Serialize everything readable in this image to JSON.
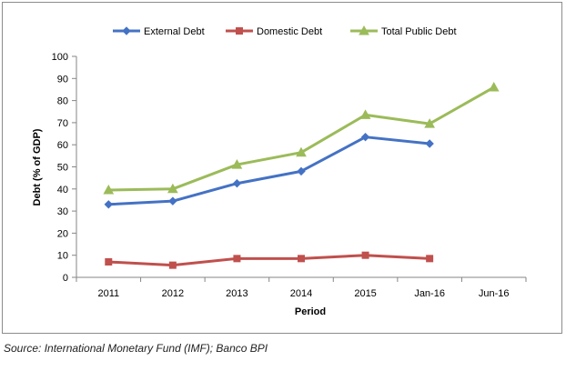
{
  "source": "Source: International Monetary Fund (IMF); Banco BPI",
  "chart_data": {
    "type": "line",
    "title": "",
    "xlabel": "Period",
    "ylabel": "Debt (% of GDP)",
    "categories": [
      "2011",
      "2012",
      "2013",
      "2014",
      "2015",
      "Jan-16",
      "Jun-16"
    ],
    "ylim": [
      0,
      100
    ],
    "yticks": [
      0,
      10,
      20,
      30,
      40,
      50,
      60,
      70,
      80,
      90,
      100
    ],
    "grid": false,
    "legend": "top",
    "series": [
      {
        "name": "External Debt",
        "color": "#4472c4",
        "marker": "diamond",
        "values": [
          33,
          34.5,
          42.5,
          48,
          63.5,
          60.5,
          null
        ]
      },
      {
        "name": "Domestic Debt",
        "color": "#c0504d",
        "marker": "square",
        "values": [
          7,
          5.5,
          8.5,
          8.5,
          10,
          8.5,
          null
        ]
      },
      {
        "name": "Total Public Debt",
        "color": "#9bbb59",
        "marker": "triangle",
        "values": [
          39.5,
          40,
          51,
          56.5,
          73.5,
          69.5,
          86
        ]
      }
    ]
  }
}
